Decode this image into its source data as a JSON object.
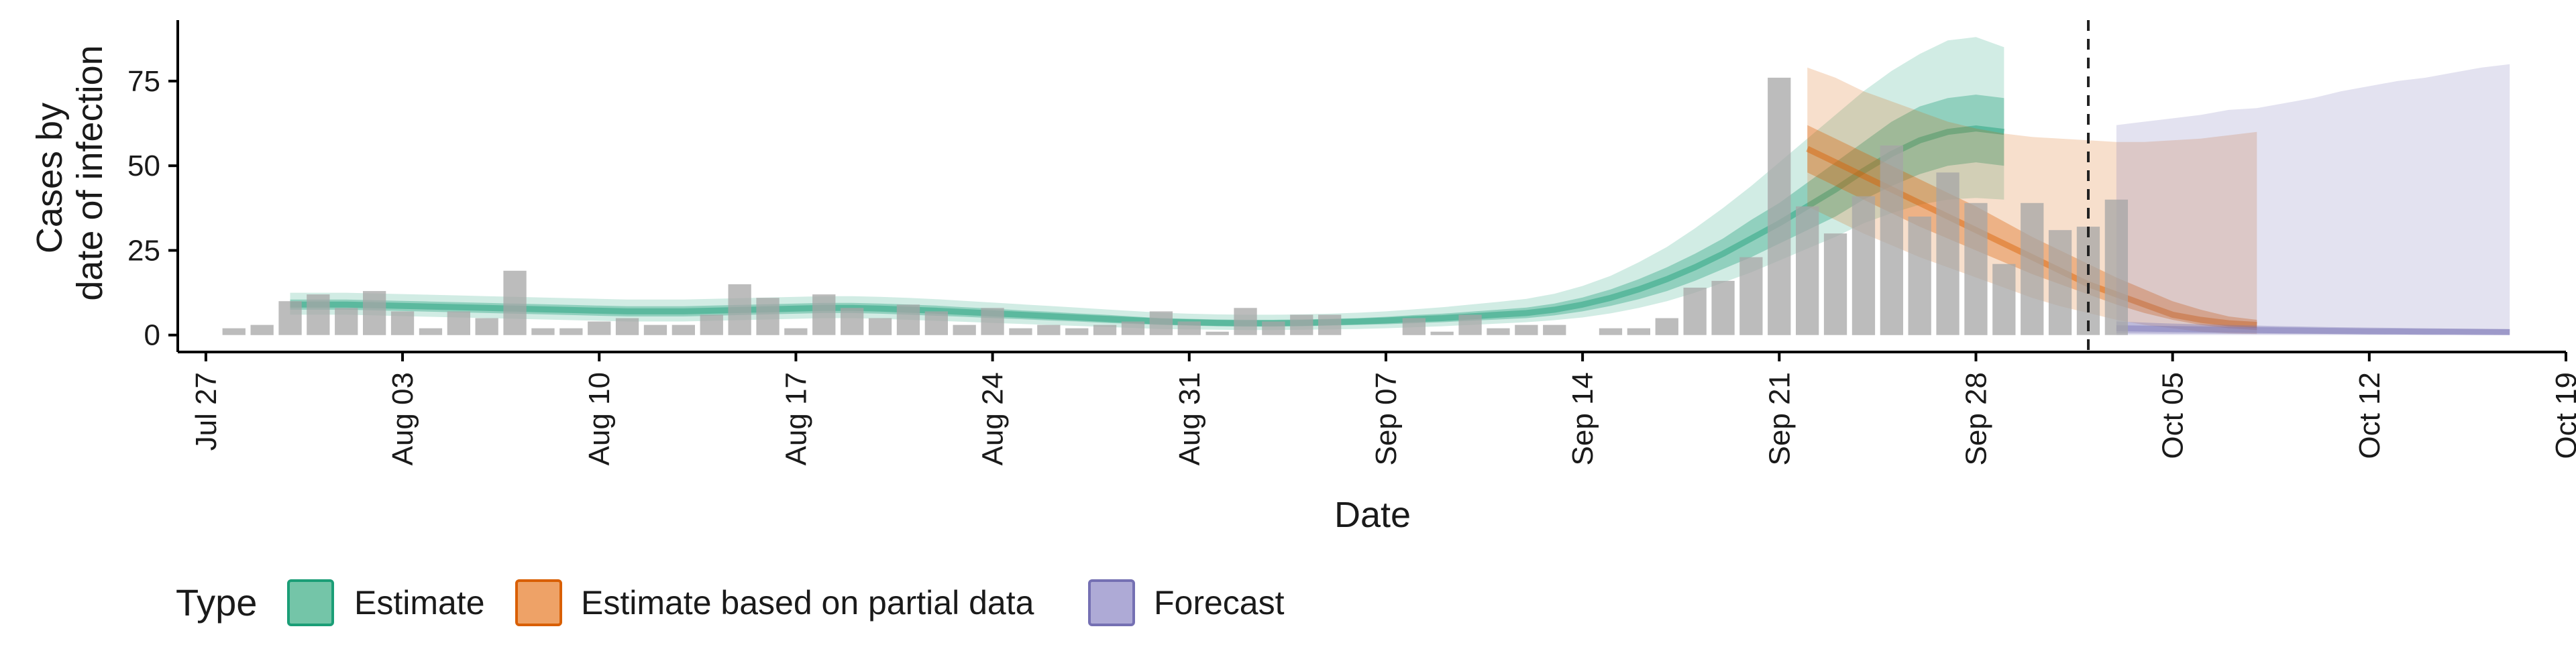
{
  "chart_data": {
    "type": "bar",
    "xlabel": "Date",
    "ylabel_lines": [
      "Cases by",
      "date of infection"
    ],
    "ylim": [
      -5,
      93
    ],
    "y_ticks": [
      0,
      25,
      50,
      75
    ],
    "x_range": [
      "2020-07-26",
      "2020-10-19"
    ],
    "x_ticks": [
      {
        "date": "2020-07-27",
        "label": "Jul 27"
      },
      {
        "date": "2020-08-03",
        "label": "Aug 03"
      },
      {
        "date": "2020-08-10",
        "label": "Aug 10"
      },
      {
        "date": "2020-08-17",
        "label": "Aug 17"
      },
      {
        "date": "2020-08-24",
        "label": "Aug 24"
      },
      {
        "date": "2020-08-31",
        "label": "Aug 31"
      },
      {
        "date": "2020-09-07",
        "label": "Sep 07"
      },
      {
        "date": "2020-09-14",
        "label": "Sep 14"
      },
      {
        "date": "2020-09-21",
        "label": "Sep 21"
      },
      {
        "date": "2020-09-28",
        "label": "Sep 28"
      },
      {
        "date": "2020-10-05",
        "label": "Oct 05"
      },
      {
        "date": "2020-10-12",
        "label": "Oct 12"
      },
      {
        "date": "2020-10-19",
        "label": "Oct 19"
      }
    ],
    "vline_date": "2020-10-02",
    "grid": false,
    "legend": {
      "title": "Type",
      "placement": "bottom",
      "items": [
        {
          "label": "Estimate",
          "fill": "#74c5a8",
          "stroke": "#1b9e77"
        },
        {
          "label": "Estimate based on partial data",
          "fill": "#eea267",
          "stroke": "#d95f02"
        },
        {
          "label": "Forecast",
          "fill": "#aeaad6",
          "stroke": "#7570b3"
        }
      ]
    },
    "colors": {
      "estimate": "#1b9e77",
      "partial": "#d95f02",
      "forecast": "#7570b3",
      "bars": "#a6a6a6"
    },
    "bars": {
      "start_date": "2020-07-28",
      "values": [
        2,
        3,
        10,
        12,
        8,
        13,
        7,
        2,
        7,
        5,
        19,
        2,
        2,
        4,
        5,
        3,
        3,
        6,
        15,
        11,
        2,
        12,
        8,
        5,
        9,
        7,
        3,
        8,
        2,
        3,
        2,
        3,
        4,
        7,
        4,
        1,
        8,
        4,
        6,
        6,
        0,
        0,
        5,
        1,
        6,
        2,
        3,
        3,
        0,
        2,
        2,
        5,
        14,
        16,
        23,
        76,
        38,
        30,
        41,
        56,
        35,
        48,
        39,
        21,
        39,
        31,
        32,
        40
      ]
    },
    "series": [
      {
        "name": "Estimate",
        "start_date": "2020-07-30",
        "median": [
          9,
          9,
          9,
          8.8,
          8.6,
          8.4,
          8.2,
          8,
          7.8,
          7.6,
          7.4,
          7.2,
          7,
          7,
          7,
          7.2,
          7.4,
          7.6,
          7.8,
          8,
          8,
          7.8,
          7.5,
          7.2,
          6.8,
          6.4,
          6,
          5.6,
          5.2,
          4.8,
          4.4,
          4,
          3.8,
          3.6,
          3.5,
          3.5,
          3.6,
          3.8,
          4,
          4.3,
          4.7,
          5,
          5.5,
          6,
          6.5,
          7.5,
          9,
          11,
          13.5,
          16.5,
          20,
          24,
          28.5,
          33,
          38,
          43,
          48.5,
          53.5,
          57.5,
          60,
          61,
          60
        ],
        "lower20": [
          7.5,
          7.5,
          7.5,
          7.3,
          7.1,
          6.9,
          6.7,
          6.5,
          6.3,
          6.1,
          5.9,
          5.7,
          5.5,
          5.5,
          5.5,
          5.7,
          5.9,
          6.1,
          6.3,
          6.5,
          6.5,
          6.3,
          6,
          5.7,
          5.4,
          5,
          4.7,
          4.3,
          4,
          3.6,
          3.3,
          3,
          2.8,
          2.6,
          2.5,
          2.5,
          2.6,
          2.8,
          3,
          3.2,
          3.5,
          3.8,
          4.2,
          4.6,
          5,
          5.8,
          7,
          8.6,
          10.6,
          13,
          16,
          19.5,
          23,
          27,
          31,
          35,
          40,
          44,
          47.5,
          50,
          51,
          50
        ],
        "upper20": [
          10.5,
          10.5,
          10.5,
          10.3,
          10.1,
          9.9,
          9.7,
          9.5,
          9.3,
          9.1,
          8.9,
          8.7,
          8.5,
          8.5,
          8.5,
          8.7,
          8.9,
          9.1,
          9.3,
          9.5,
          9.5,
          9.3,
          9,
          8.7,
          8.2,
          7.8,
          7.3,
          6.9,
          6.4,
          6,
          5.5,
          5,
          4.8,
          4.6,
          4.5,
          4.5,
          4.6,
          4.8,
          5,
          5.4,
          5.9,
          6.3,
          6.9,
          7.5,
          8.1,
          9.3,
          11.1,
          13.5,
          16.5,
          20,
          24,
          28.5,
          34,
          39,
          45,
          51,
          57,
          63,
          67.5,
          70,
          71,
          70
        ],
        "lower90": [
          6,
          6,
          6,
          5.8,
          5.6,
          5.4,
          5.2,
          5,
          4.8,
          4.6,
          4.4,
          4.2,
          4,
          4,
          4,
          4.2,
          4.4,
          4.6,
          4.8,
          5,
          5,
          4.8,
          4.5,
          4.2,
          3.9,
          3.6,
          3.3,
          3,
          2.7,
          2.4,
          2.1,
          1.8,
          1.7,
          1.6,
          1.5,
          1.5,
          1.6,
          1.7,
          1.8,
          2,
          2.3,
          2.6,
          3,
          3.4,
          3.8,
          4.4,
          5.2,
          6.4,
          8,
          10,
          12.5,
          15.5,
          18.5,
          22,
          25.5,
          29,
          33,
          36,
          38.5,
          40,
          40.5,
          40
        ],
        "upper90": [
          12.5,
          12.5,
          12.5,
          12.3,
          12.1,
          11.9,
          11.7,
          11.5,
          11.3,
          11.1,
          10.9,
          10.7,
          10.5,
          10.5,
          10.5,
          10.7,
          10.9,
          11.1,
          11.3,
          11.5,
          11.5,
          11.3,
          11,
          10.6,
          10.1,
          9.6,
          9.1,
          8.6,
          8.1,
          7.6,
          7.1,
          6.6,
          6.3,
          6.1,
          6,
          6,
          6.1,
          6.3,
          6.6,
          7,
          7.6,
          8.2,
          9,
          9.8,
          10.7,
          12.2,
          14.5,
          17.5,
          21.5,
          26,
          31.5,
          37.5,
          44,
          51,
          58,
          65,
          72,
          78,
          83,
          87,
          88,
          85
        ]
      },
      {
        "name": "Estimate based on partial data",
        "start_date": "2020-09-22",
        "median": [
          55,
          51,
          47,
          43,
          39,
          35,
          31,
          27,
          23,
          19,
          15,
          12,
          9,
          6,
          4.5,
          3.5,
          3
        ],
        "lower20": [
          48,
          44,
          40,
          36,
          32,
          28.5,
          25,
          21.5,
          18,
          15,
          12,
          9,
          6.5,
          4.5,
          3,
          2,
          1.5
        ],
        "upper20": [
          62,
          58,
          54,
          50,
          46,
          42,
          38,
          33.5,
          29,
          25,
          21,
          17,
          13.5,
          10,
          7.5,
          5.5,
          4.5
        ],
        "lower90": [
          38,
          34,
          30,
          26.5,
          23,
          20,
          17,
          14,
          11,
          8.5,
          6.5,
          4.5,
          3,
          2,
          1,
          0.5,
          0.3
        ],
        "upper90": [
          79,
          76,
          72,
          69,
          66,
          63,
          61,
          59.5,
          58.5,
          58,
          57.5,
          57,
          57,
          57.5,
          58,
          59,
          60
        ]
      },
      {
        "name": "Forecast",
        "start_date": "2020-10-03",
        "median": [
          2,
          1.9,
          1.8,
          1.7,
          1.6,
          1.5,
          1.4,
          1.3,
          1.2,
          1.1,
          1.05,
          1,
          0.95,
          0.9,
          0.85
        ],
        "lower20": [
          0.5,
          0.45,
          0.4,
          0.38,
          0.35,
          0.33,
          0.3,
          0.28,
          0.26,
          0.24,
          0.22,
          0.2,
          0.19,
          0.18,
          0.17
        ],
        "upper20": [
          4,
          3.7,
          3.4,
          3.2,
          3,
          2.8,
          2.6,
          2.45,
          2.3,
          2.2,
          2.1,
          2,
          1.9,
          1.85,
          1.8
        ],
        "lower90": [
          0,
          0,
          0,
          0,
          0,
          0,
          0,
          0,
          0,
          0,
          0,
          0,
          0,
          0,
          0
        ],
        "upper90": [
          62,
          63,
          64,
          65,
          66.5,
          67,
          68.5,
          70,
          72,
          73.5,
          75,
          76,
          77.5,
          79,
          80
        ]
      }
    ]
  }
}
